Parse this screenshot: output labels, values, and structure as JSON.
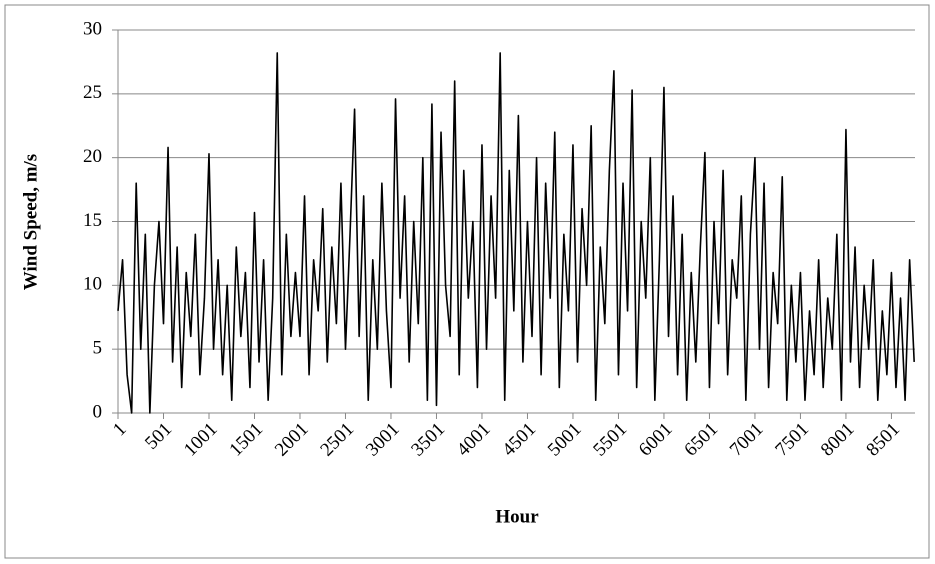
{
  "chart_data": {
    "type": "line",
    "x_label": "Hour",
    "y_label": "Wind Speed, m/s",
    "x": [
      1,
      51,
      101,
      151,
      201,
      251,
      301,
      351,
      401,
      451,
      501,
      551,
      601,
      651,
      701,
      751,
      801,
      851,
      901,
      951,
      1001,
      1051,
      1101,
      1151,
      1201,
      1251,
      1301,
      1351,
      1401,
      1451,
      1501,
      1551,
      1601,
      1651,
      1701,
      1751,
      1801,
      1851,
      1901,
      1951,
      2001,
      2051,
      2101,
      2151,
      2201,
      2251,
      2301,
      2351,
      2401,
      2451,
      2501,
      2551,
      2601,
      2651,
      2701,
      2751,
      2801,
      2851,
      2901,
      2951,
      3001,
      3051,
      3101,
      3151,
      3201,
      3251,
      3301,
      3351,
      3401,
      3451,
      3501,
      3551,
      3601,
      3651,
      3701,
      3751,
      3801,
      3851,
      3901,
      3951,
      4001,
      4051,
      4101,
      4151,
      4201,
      4251,
      4301,
      4351,
      4401,
      4451,
      4501,
      4551,
      4601,
      4651,
      4701,
      4751,
      4801,
      4851,
      4901,
      4951,
      5001,
      5051,
      5101,
      5151,
      5201,
      5251,
      5301,
      5351,
      5401,
      5451,
      5501,
      5551,
      5601,
      5651,
      5701,
      5751,
      5801,
      5851,
      5901,
      5951,
      6001,
      6051,
      6101,
      6151,
      6201,
      6251,
      6301,
      6351,
      6401,
      6451,
      6501,
      6551,
      6601,
      6651,
      6701,
      6751,
      6801,
      6851,
      6901,
      6951,
      7001,
      7051,
      7101,
      7151,
      7201,
      7251,
      7301,
      7351,
      7401,
      7451,
      7501,
      7551,
      7601,
      7651,
      7701,
      7751,
      7801,
      7851,
      7901,
      7951,
      8001,
      8051,
      8101,
      8151,
      8201,
      8251,
      8301,
      8351,
      8401,
      8451,
      8501,
      8551,
      8601,
      8651,
      8701,
      8751
    ],
    "values": [
      8,
      12,
      3,
      0,
      18,
      5,
      14,
      0,
      10,
      15,
      7,
      20.8,
      4,
      13,
      2,
      11,
      6,
      14,
      3,
      9,
      20.3,
      5,
      12,
      3,
      10,
      1,
      13,
      6,
      11,
      2,
      15.7,
      4,
      12,
      1,
      9,
      28.2,
      3,
      14,
      6,
      11,
      6,
      17,
      3,
      12,
      8,
      16,
      4,
      13,
      7,
      18,
      5,
      14,
      23.8,
      6,
      17,
      1,
      12,
      5,
      18,
      8,
      2,
      24.6,
      9,
      17,
      4,
      15,
      7,
      20,
      1,
      24.2,
      0.6,
      22,
      10,
      6,
      26,
      3,
      19,
      9,
      15,
      2,
      21,
      5,
      17,
      9,
      28.2,
      1,
      19,
      8,
      23.3,
      4,
      15,
      6,
      20,
      3,
      18,
      9,
      22,
      2,
      14,
      8,
      21,
      4,
      16,
      10,
      22.5,
      1,
      13,
      7,
      19,
      26.8,
      3,
      18,
      8,
      25.3,
      2,
      15,
      9,
      20,
      1,
      12,
      25.5,
      6,
      17,
      3,
      14,
      1,
      11,
      4,
      13,
      20.4,
      2,
      15,
      7,
      19,
      3,
      12,
      9,
      17,
      1,
      14,
      20,
      5,
      18,
      2,
      11,
      7,
      18.5,
      1,
      10,
      4,
      11,
      1,
      8,
      3,
      12,
      2,
      9,
      5,
      14,
      1,
      22.2,
      4,
      13,
      2,
      10,
      5,
      12,
      1,
      8,
      3,
      11,
      2,
      9,
      1,
      12,
      4
    ],
    "color": "#000000",
    "xlim": [
      1,
      8760
    ],
    "xticks": [
      1,
      501,
      1001,
      1501,
      2001,
      2501,
      3001,
      3501,
      4001,
      4501,
      5001,
      5501,
      6001,
      6501,
      7001,
      7501,
      8001,
      8501
    ],
    "ylim": [
      0,
      30
    ],
    "yticks": [
      0,
      5,
      10,
      15,
      20,
      25,
      30
    ],
    "grid": true
  }
}
